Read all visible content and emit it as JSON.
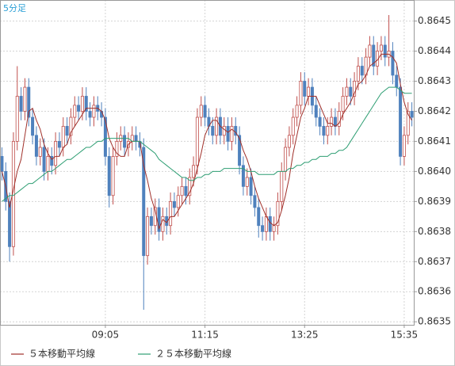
{
  "chart_data": {
    "type": "candlestick",
    "subtitle": "5分足",
    "categories": [
      null,
      null,
      null,
      null,
      null,
      null,
      null,
      null,
      null,
      null,
      null,
      null,
      null,
      null,
      null,
      null,
      null,
      null,
      null,
      null,
      null,
      null,
      null,
      null,
      null,
      null,
      null,
      "09:05",
      null,
      null,
      null,
      null,
      null,
      null,
      null,
      null,
      null,
      null,
      null,
      null,
      null,
      null,
      null,
      null,
      null,
      null,
      null,
      null,
      null,
      null,
      null,
      null,
      null,
      "11:15",
      null,
      null,
      null,
      null,
      null,
      null,
      null,
      null,
      null,
      null,
      null,
      null,
      null,
      null,
      null,
      null,
      null,
      null,
      null,
      null,
      null,
      null,
      null,
      null,
      null,
      "13:25",
      null,
      null,
      null,
      null,
      null,
      null,
      null,
      null,
      null,
      null,
      null,
      null,
      null,
      null,
      null,
      null,
      null,
      null,
      null,
      null,
      null,
      null,
      null,
      null,
      null,
      "15:35",
      null,
      null
    ],
    "up_color": "#c0504d",
    "down_color": "#4f81bd",
    "ohlc": [
      [
        0.86405,
        0.86408,
        0.86397,
        0.864
      ],
      [
        0.864,
        0.86403,
        0.86387,
        0.8639
      ],
      [
        0.8639,
        0.86393,
        0.8637,
        0.86375
      ],
      [
        0.86375,
        0.86413,
        0.86372,
        0.8641
      ],
      [
        0.8641,
        0.86435,
        0.86407,
        0.86425
      ],
      [
        0.86425,
        0.86428,
        0.86417,
        0.8642
      ],
      [
        0.8642,
        0.86431,
        0.86417,
        0.86428
      ],
      [
        0.86428,
        0.86431,
        0.86415,
        0.86418
      ],
      [
        0.86418,
        0.86421,
        0.86409,
        0.86412
      ],
      [
        0.86412,
        0.86415,
        0.86402,
        0.86405
      ],
      [
        0.86405,
        0.86411,
        0.86402,
        0.86408
      ],
      [
        0.86408,
        0.86411,
        0.86397,
        0.864
      ],
      [
        0.864,
        0.86408,
        0.86397,
        0.86405
      ],
      [
        0.86405,
        0.86408,
        0.86399,
        0.86402
      ],
      [
        0.86402,
        0.86413,
        0.86399,
        0.8641
      ],
      [
        0.8641,
        0.86413,
        0.86405,
        0.86408
      ],
      [
        0.86408,
        0.86418,
        0.86405,
        0.86415
      ],
      [
        0.86415,
        0.86418,
        0.86409,
        0.86412
      ],
      [
        0.86412,
        0.86421,
        0.86409,
        0.86418
      ],
      [
        0.86418,
        0.86425,
        0.86415,
        0.86422
      ],
      [
        0.86422,
        0.86425,
        0.86417,
        0.8642
      ],
      [
        0.8642,
        0.86428,
        0.86417,
        0.86425
      ],
      [
        0.86425,
        0.86428,
        0.86417,
        0.8642
      ],
      [
        0.8642,
        0.86423,
        0.86415,
        0.86418
      ],
      [
        0.86418,
        0.86425,
        0.86415,
        0.86422
      ],
      [
        0.86422,
        0.86425,
        0.86417,
        0.8642
      ],
      [
        0.8642,
        0.86423,
        0.86415,
        0.86418
      ],
      [
        0.86418,
        0.86421,
        0.86402,
        0.86405
      ],
      [
        0.86405,
        0.86408,
        0.86388,
        0.86392
      ],
      [
        0.86392,
        0.86408,
        0.86389,
        0.86405
      ],
      [
        0.86405,
        0.86413,
        0.86402,
        0.8641
      ],
      [
        0.8641,
        0.86415,
        0.86407,
        0.86412
      ],
      [
        0.86412,
        0.86415,
        0.86405,
        0.86408
      ],
      [
        0.86408,
        0.86413,
        0.86405,
        0.8641
      ],
      [
        0.8641,
        0.86415,
        0.86407,
        0.86412
      ],
      [
        0.86412,
        0.86415,
        0.86407,
        0.8641
      ],
      [
        0.8641,
        0.86413,
        0.86405,
        0.86408
      ],
      [
        0.86408,
        0.86411,
        0.86354,
        0.86372
      ],
      [
        0.86372,
        0.86388,
        0.86369,
        0.86385
      ],
      [
        0.86385,
        0.86388,
        0.86379,
        0.86382
      ],
      [
        0.86382,
        0.86391,
        0.86379,
        0.86388
      ],
      [
        0.86388,
        0.86391,
        0.86377,
        0.8638
      ],
      [
        0.8638,
        0.86388,
        0.86377,
        0.86385
      ],
      [
        0.86385,
        0.86388,
        0.86379,
        0.86382
      ],
      [
        0.86382,
        0.86393,
        0.86379,
        0.8639
      ],
      [
        0.8639,
        0.86393,
        0.86385,
        0.86388
      ],
      [
        0.86388,
        0.86395,
        0.86385,
        0.86392
      ],
      [
        0.86392,
        0.86398,
        0.86389,
        0.86395
      ],
      [
        0.86395,
        0.86398,
        0.86389,
        0.86392
      ],
      [
        0.86392,
        0.86401,
        0.86389,
        0.86398
      ],
      [
        0.86398,
        0.86405,
        0.86395,
        0.86402
      ],
      [
        0.86402,
        0.86421,
        0.86399,
        0.86418
      ],
      [
        0.86418,
        0.86425,
        0.86415,
        0.86422
      ],
      [
        0.86422,
        0.86425,
        0.86415,
        0.86418
      ],
      [
        0.86418,
        0.86421,
        0.86412,
        0.86415
      ],
      [
        0.86415,
        0.86418,
        0.86409,
        0.86412
      ],
      [
        0.86412,
        0.86421,
        0.86409,
        0.86418
      ],
      [
        0.86418,
        0.86421,
        0.86409,
        0.86412
      ],
      [
        0.86412,
        0.86418,
        0.86409,
        0.86415
      ],
      [
        0.86415,
        0.86418,
        0.86407,
        0.8641
      ],
      [
        0.8641,
        0.86418,
        0.86407,
        0.86415
      ],
      [
        0.86415,
        0.86418,
        0.86409,
        0.86412
      ],
      [
        0.86412,
        0.86415,
        0.86399,
        0.86402
      ],
      [
        0.86402,
        0.86405,
        0.86392,
        0.86395
      ],
      [
        0.86395,
        0.86401,
        0.86392,
        0.86398
      ],
      [
        0.86398,
        0.86401,
        0.86389,
        0.86392
      ],
      [
        0.86392,
        0.86395,
        0.86385,
        0.86388
      ],
      [
        0.86388,
        0.86391,
        0.86378,
        0.86382
      ],
      [
        0.86382,
        0.86385,
        0.86377,
        0.8638
      ],
      [
        0.8638,
        0.86388,
        0.86377,
        0.86385
      ],
      [
        0.86385,
        0.86388,
        0.86377,
        0.8638
      ],
      [
        0.8638,
        0.86385,
        0.86377,
        0.86382
      ],
      [
        0.86382,
        0.86393,
        0.86379,
        0.8639
      ],
      [
        0.8639,
        0.86403,
        0.86387,
        0.864
      ],
      [
        0.864,
        0.86411,
        0.86397,
        0.86408
      ],
      [
        0.86408,
        0.86415,
        0.86405,
        0.86412
      ],
      [
        0.86412,
        0.86421,
        0.86409,
        0.86418
      ],
      [
        0.86418,
        0.86425,
        0.86415,
        0.86422
      ],
      [
        0.86422,
        0.86433,
        0.86419,
        0.8643
      ],
      [
        0.8643,
        0.86433,
        0.86422,
        0.86425
      ],
      [
        0.86425,
        0.86431,
        0.86422,
        0.86428
      ],
      [
        0.86428,
        0.86431,
        0.86419,
        0.86422
      ],
      [
        0.86422,
        0.86425,
        0.86415,
        0.86418
      ],
      [
        0.86418,
        0.86421,
        0.86412,
        0.86415
      ],
      [
        0.86415,
        0.86418,
        0.86409,
        0.86412
      ],
      [
        0.86412,
        0.86418,
        0.86409,
        0.86415
      ],
      [
        0.86415,
        0.86421,
        0.86412,
        0.86418
      ],
      [
        0.86418,
        0.86421,
        0.86412,
        0.86415
      ],
      [
        0.86415,
        0.86423,
        0.86412,
        0.8642
      ],
      [
        0.8642,
        0.86428,
        0.86417,
        0.86425
      ],
      [
        0.86425,
        0.86431,
        0.86422,
        0.86428
      ],
      [
        0.86428,
        0.86431,
        0.86422,
        0.86425
      ],
      [
        0.86425,
        0.86433,
        0.86422,
        0.8643
      ],
      [
        0.8643,
        0.86438,
        0.86427,
        0.86435
      ],
      [
        0.86435,
        0.86438,
        0.86429,
        0.86432
      ],
      [
        0.86432,
        0.86441,
        0.86429,
        0.86438
      ],
      [
        0.86438,
        0.86445,
        0.86435,
        0.86442
      ],
      [
        0.86442,
        0.86445,
        0.86432,
        0.86435
      ],
      [
        0.86435,
        0.86443,
        0.86432,
        0.8644
      ],
      [
        0.8644,
        0.86445,
        0.86437,
        0.86442
      ],
      [
        0.86442,
        0.86445,
        0.86435,
        0.86438
      ],
      [
        0.86438,
        0.86452,
        0.86435,
        0.8644
      ],
      [
        0.8644,
        0.86443,
        0.86429,
        0.86432
      ],
      [
        0.86432,
        0.86435,
        0.86425,
        0.86428
      ],
      [
        0.86428,
        0.86431,
        0.86402,
        0.86405
      ],
      [
        0.86405,
        0.86415,
        0.86402,
        0.86412
      ],
      [
        0.86412,
        0.86423,
        0.86409,
        0.8642
      ],
      [
        0.8642,
        0.86423,
        0.86415,
        0.86418
      ]
    ],
    "series": [
      {
        "name": "５本移動平均線",
        "color": "#a0302a",
        "values": [
          0.864,
          0.86395,
          0.86388,
          0.86394,
          0.864,
          0.86404,
          0.86412,
          0.8642,
          0.86421,
          0.86417,
          0.86414,
          0.86409,
          0.86406,
          0.86404,
          0.86405,
          0.86405,
          0.86408,
          0.86409,
          0.86413,
          0.86415,
          0.86417,
          0.86419,
          0.86421,
          0.86421,
          0.86421,
          0.86421,
          0.8642,
          0.86417,
          0.86411,
          0.86408,
          0.86406,
          0.86405,
          0.86405,
          0.86409,
          0.8641,
          0.8641,
          0.8641,
          0.86402,
          0.86397,
          0.86391,
          0.86387,
          0.86381,
          0.86384,
          0.86383,
          0.86385,
          0.86385,
          0.86387,
          0.86389,
          0.86391,
          0.86393,
          0.86396,
          0.86401,
          0.86406,
          0.86412,
          0.86415,
          0.86417,
          0.86417,
          0.86415,
          0.86414,
          0.86413,
          0.86414,
          0.86413,
          0.86411,
          0.86407,
          0.86404,
          0.864,
          0.86395,
          0.86391,
          0.86388,
          0.86385,
          0.86383,
          0.86382,
          0.86383,
          0.86387,
          0.86392,
          0.86398,
          0.86406,
          0.86412,
          0.86418,
          0.86421,
          0.86425,
          0.86425,
          0.86425,
          0.86422,
          0.86419,
          0.86416,
          0.86416,
          0.86415,
          0.86416,
          0.86419,
          0.86421,
          0.86423,
          0.86426,
          0.86429,
          0.8643,
          0.86432,
          0.86435,
          0.86436,
          0.86437,
          0.86439,
          0.86439,
          0.86439,
          0.86438,
          0.86436,
          0.86429,
          0.86423,
          0.86419,
          0.86417
        ]
      },
      {
        "name": "２５本移動平均線",
        "color": "#2e9e73",
        "values": [
          0.8639,
          0.86391,
          0.86392,
          0.86392,
          0.86393,
          0.86394,
          0.86395,
          0.86396,
          0.86396,
          0.86397,
          0.86398,
          0.86399,
          0.864,
          0.864,
          0.86401,
          0.86402,
          0.86403,
          0.86404,
          0.86404,
          0.86405,
          0.86406,
          0.86407,
          0.86408,
          0.86408,
          0.86409,
          0.8641,
          0.8641,
          0.86411,
          0.86411,
          0.86411,
          0.86411,
          0.86411,
          0.86411,
          0.86411,
          0.8641,
          0.8641,
          0.8641,
          0.86409,
          0.86408,
          0.86407,
          0.86406,
          0.86404,
          0.86403,
          0.86402,
          0.86401,
          0.864,
          0.86399,
          0.86398,
          0.86398,
          0.86397,
          0.86397,
          0.86398,
          0.86398,
          0.86399,
          0.86399,
          0.864,
          0.864,
          0.864,
          0.86401,
          0.86401,
          0.86401,
          0.86401,
          0.86401,
          0.86401,
          0.864,
          0.864,
          0.864,
          0.86399,
          0.86399,
          0.86399,
          0.86399,
          0.86399,
          0.864,
          0.864,
          0.864,
          0.86401,
          0.86401,
          0.86402,
          0.86402,
          0.86403,
          0.86403,
          0.86404,
          0.86404,
          0.86405,
          0.86405,
          0.86405,
          0.86406,
          0.86406,
          0.86407,
          0.86407,
          0.86408,
          0.8641,
          0.86412,
          0.86414,
          0.86416,
          0.86418,
          0.8642,
          0.86422,
          0.86424,
          0.86426,
          0.86427,
          0.86428,
          0.86428,
          0.86428,
          0.86427,
          0.86426,
          0.86426,
          0.86426
        ]
      }
    ],
    "ylim": [
      0.86349,
      0.86457
    ],
    "yticks": [
      0.8635,
      0.8636,
      0.8637,
      0.8638,
      0.8639,
      {
        "value": 0.864,
        "label": "0.8640"
      },
      0.8641,
      0.8642,
      0.8643,
      0.8644,
      0.8645
    ],
    "grid": true
  }
}
